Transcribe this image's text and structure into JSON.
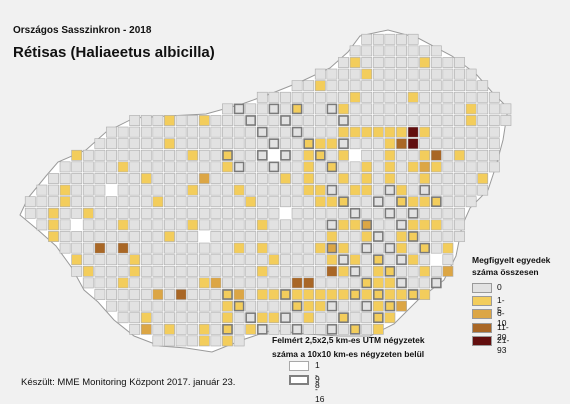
{
  "header": {
    "survey_title": "Országos Sasszinkron - 2018",
    "species_title": "Rétisas (Haliaeetus albicilla)"
  },
  "legend": {
    "title_line1": "Megfigyelt egyedek",
    "title_line2": "száma összesen",
    "items": [
      {
        "label": "0",
        "color": "#e2e2e2"
      },
      {
        "label": "1-5",
        "color": "#f3cd5c"
      },
      {
        "label": "6-10",
        "color": "#dca645"
      },
      {
        "label": "11-20",
        "color": "#a96726"
      },
      {
        "label": "21-93",
        "color": "#620e0e"
      }
    ]
  },
  "grid_legend": {
    "title_line1": "Felmért 2,5x2,5 km-es UTM négyzetek",
    "title_line2": "száma a 10x10 km-es négyzeten belül",
    "items": [
      {
        "label": "1 - 8",
        "style": "thin"
      },
      {
        "label": "9 - 16",
        "style": "thick"
      }
    ]
  },
  "credit": "Készült: MME Monitoring Központ 2017. január 23.",
  "map_colors": {
    "country_fill": "#ffffff",
    "country_outline": "#9a9a9a",
    "cell_outline": "#ababab",
    "thick_outline": "#7a7a7a"
  }
}
